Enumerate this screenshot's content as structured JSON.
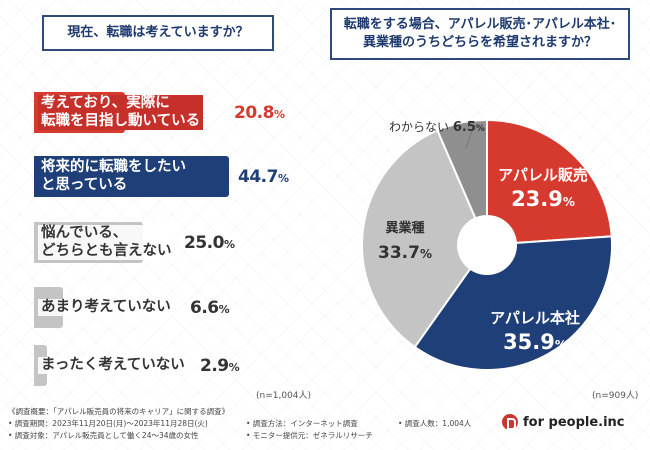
{
  "left_question": "現在、転職は考えていますか？",
  "right_question_line1": "転職をする場合、アパレル販売･アパレル本社･",
  "right_question_line2": "異業種のうちどちらを希望されますか？",
  "left_n": "(n=1,004人)",
  "right_n": "(n=909人)",
  "bars": [
    {
      "label_lines": [
        "考えており、実際に",
        "転職を目指し動いている"
      ],
      "value": "20.8",
      "unit": "%"
    },
    {
      "label_lines": [
        "将来的に転職をしたい",
        "と思っている"
      ],
      "value": "44.7",
      "unit": "%"
    },
    {
      "label_lines": [
        "悩んでいる、",
        "どちらとも言えない"
      ],
      "value": "25.0",
      "unit": "%"
    },
    {
      "label_lines": [
        "あまり考えていない"
      ],
      "value": "6.6",
      "unit": "%"
    },
    {
      "label_lines": [
        "まったく考えていない"
      ],
      "value": "2.9",
      "unit": "%"
    }
  ],
  "pie_labels": [
    {
      "name": "アパレル販売",
      "value": "23.9",
      "unit": "%"
    },
    {
      "name": "アパレル本社",
      "value": "35.9",
      "unit": "%"
    },
    {
      "name": "異業種",
      "value": "33.7",
      "unit": "%"
    },
    {
      "name": "わからない",
      "value": "6.5",
      "unit": "%"
    }
  ],
  "footer": {
    "survey_overview": "《調査概要：「アパレル販売員の将来のキャリア」に関する調査》",
    "period": "• 調査期間：2023年11月20日(月)～2023年11月28日(火)",
    "target": "• 調査対象：アパレル販売員として働く24～34歳の女性",
    "method": "• 調査方法：インターネット調査",
    "monitor": "• モニター提供元：ゼネラルリサーチ",
    "count": "• 調査人数：1,004人",
    "logo": "for people.inc"
  },
  "colors": {
    "red": "#d63a2f",
    "navy": "#1f3f78",
    "grey_light": "#c4c4c4",
    "grey_mid": "#a9a9a9",
    "grey_dark": "#8f8f8f",
    "pink": "#f6d6d3"
  },
  "chart_data": [
    {
      "type": "bar",
      "title": "現在、転職は考えていますか？",
      "categories": [
        "考えており、実際に転職を目指し動いている",
        "将来的に転職をしたいと思っている",
        "悩んでいる、どちらとも言えない",
        "あまり考えていない",
        "まったく考えていない"
      ],
      "values": [
        20.8,
        44.7,
        25.0,
        6.6,
        2.9
      ],
      "unit": "%",
      "orientation": "horizontal",
      "note": "(n=1,004人)"
    },
    {
      "type": "pie",
      "title": "転職をする場合、アパレル販売･アパレル本社･異業種のうちどちらを希望されますか？",
      "categories": [
        "アパレル販売",
        "アパレル本社",
        "異業種",
        "わからない"
      ],
      "values": [
        23.9,
        35.9,
        33.7,
        6.5
      ],
      "unit": "%",
      "note": "(n=909人)"
    }
  ]
}
